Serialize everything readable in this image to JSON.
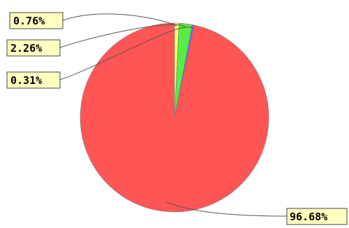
{
  "chart_data": {
    "type": "pie",
    "slices": [
      {
        "label": "96.68%",
        "value": 96.68,
        "color": "#ff5555"
      },
      {
        "label": "0.31%",
        "value": 0.31,
        "color": "#6666ff"
      },
      {
        "label": "2.26%",
        "value": 2.26,
        "color": "#55ee44"
      },
      {
        "label": "0.76%",
        "value": 0.76,
        "color": "#ffff66"
      }
    ],
    "start": "top",
    "direction": "counterclockwise",
    "legend": "none"
  }
}
